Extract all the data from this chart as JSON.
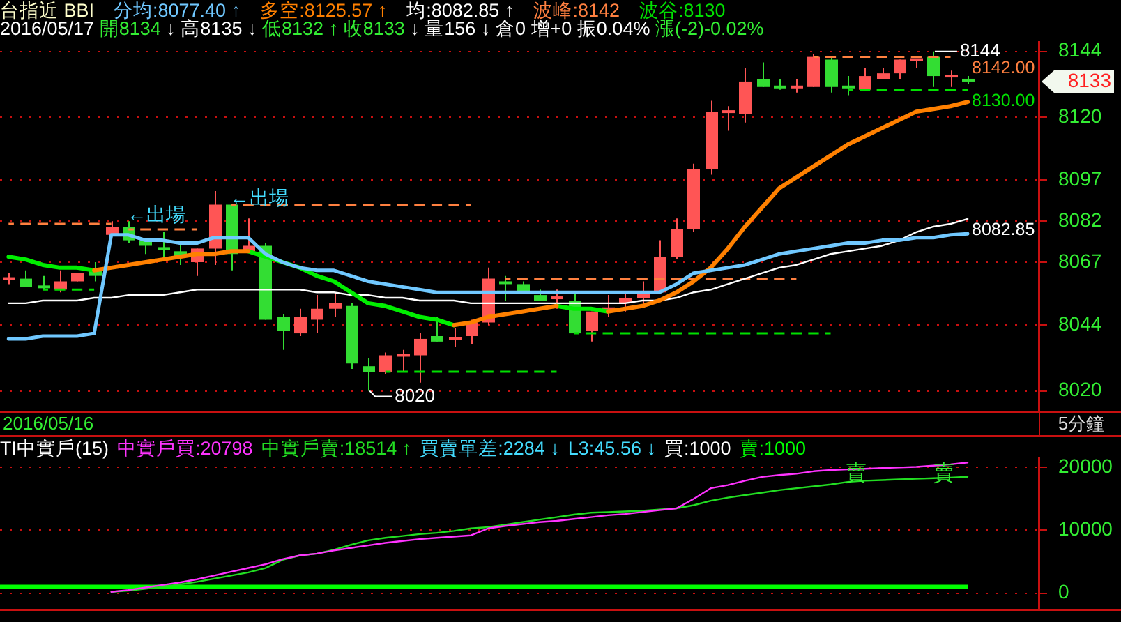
{
  "chart_data": [
    {
      "type": "candlestick",
      "title": "台指近 BBI",
      "subtitle": "2016/05/17 開8134 ↓ 高8135 ↓ 低8132 ↑ 收8133 ↓ 量156 ↓ 倉0 增+0 振0.04% 漲(-2)-0.02%",
      "categories": [
        null,
        null,
        null,
        null,
        null,
        null,
        null,
        null,
        null,
        null,
        null,
        null,
        null,
        null,
        null,
        null,
        null,
        null,
        null,
        null,
        null,
        null,
        null,
        null,
        null,
        null,
        null,
        null,
        null,
        null,
        null,
        null,
        null,
        null,
        null,
        null,
        null,
        null,
        null,
        null,
        null,
        null,
        null,
        null,
        null,
        null,
        null,
        null,
        null,
        null,
        null,
        null,
        null,
        null,
        null,
        null,
        null
      ],
      "ohlc": [
        [
          8061,
          8063,
          8059,
          8061
        ],
        [
          8061,
          8064,
          8058,
          8058
        ],
        [
          8058,
          8062,
          8057,
          8058
        ],
        [
          8057,
          8064,
          8056,
          8060
        ],
        [
          8060,
          8063,
          8060,
          8063
        ],
        [
          8064,
          8067,
          8060,
          8062
        ],
        [
          8077,
          8082,
          8077,
          8080
        ],
        [
          8080,
          8082,
          8074,
          8075
        ],
        [
          8075,
          8075,
          8070,
          8073
        ],
        [
          8072,
          8078,
          8068,
          8072
        ],
        [
          8071,
          8074,
          8066,
          8069
        ],
        [
          8067,
          8072,
          8062,
          8072
        ],
        [
          8072,
          8093,
          8066,
          8088
        ],
        [
          8088,
          8088,
          8064,
          8070
        ],
        [
          8071,
          8083,
          8071,
          8073
        ],
        [
          8073,
          8074,
          8046,
          8046
        ],
        [
          8047,
          8048,
          8035,
          8042
        ],
        [
          8041,
          8050,
          8040,
          8047
        ],
        [
          8046,
          8055,
          8041,
          8050
        ],
        [
          8050,
          8056,
          8047,
          8052
        ],
        [
          8051,
          8052,
          8028,
          8030
        ],
        [
          8029,
          8032,
          8020,
          8027
        ],
        [
          8027,
          8034,
          8026,
          8033
        ],
        [
          8033,
          8035,
          8027,
          8033
        ],
        [
          8033,
          8041,
          8023,
          8039
        ],
        [
          8040,
          8047,
          8038,
          8038
        ],
        [
          8039,
          8043,
          8036,
          8039
        ],
        [
          8040,
          8046,
          8037,
          8045
        ],
        [
          8045,
          8065,
          8044,
          8061
        ],
        [
          8060,
          8062,
          8053,
          8059
        ],
        [
          8059,
          8060,
          8056,
          8056
        ],
        [
          8055,
          8057,
          8053,
          8053
        ],
        [
          8054,
          8057,
          8050,
          8054
        ],
        [
          8053,
          8056,
          8041,
          8041
        ],
        [
          8042,
          8049,
          8038,
          8049
        ],
        [
          8050,
          8055,
          8047,
          8050
        ],
        [
          8052,
          8056,
          8049,
          8054
        ],
        [
          8054,
          8060,
          8052,
          8056
        ],
        [
          8056,
          8075,
          8056,
          8069
        ],
        [
          8069,
          8083,
          8068,
          8079
        ],
        [
          8079,
          8103,
          8078,
          8101
        ],
        [
          8101,
          8126,
          8099,
          8122
        ],
        [
          8122,
          8124,
          8115,
          8122
        ],
        [
          8121,
          8138,
          8118,
          8133
        ],
        [
          8134,
          8140,
          8131,
          8131
        ],
        [
          8131,
          8134,
          8130,
          8131
        ],
        [
          8131,
          8134,
          8129,
          8131
        ],
        [
          8131,
          8143,
          8131,
          8142
        ],
        [
          8141,
          8142,
          8129,
          8131
        ],
        [
          8131,
          8135,
          8128,
          8131
        ],
        [
          8130,
          8138,
          8130,
          8135
        ],
        [
          8134,
          8138,
          8134,
          8136
        ],
        [
          8136,
          8141,
          8134,
          8141
        ],
        [
          8141,
          8141,
          8138,
          8141
        ],
        [
          8142,
          8144,
          8131,
          8135
        ],
        [
          8135,
          8137,
          8131,
          8135
        ],
        [
          8134,
          8135,
          8132,
          8133
        ]
      ],
      "colors": [
        "#ff5555",
        "#33dd33",
        "#33dd33",
        "#ff5555",
        "#ff5555",
        "#33dd33",
        "#ff5555",
        "#33dd33",
        "#33dd33",
        "#33dd33",
        "#33dd33",
        "#ff5555",
        "#ff5555",
        "#33dd33",
        "#ff5555",
        "#33dd33",
        "#33dd33",
        "#ff5555",
        "#ff5555",
        "#ff5555",
        "#33dd33",
        "#33dd33",
        "#ff5555",
        "#ff5555",
        "#ff5555",
        "#33dd33",
        "#ff5555",
        "#ff5555",
        "#ff5555",
        "#33dd33",
        "#33dd33",
        "#33dd33",
        "#ff5555",
        "#33dd33",
        "#ff5555",
        "#ff5555",
        "#ff5555",
        "#ff5555",
        "#ff5555",
        "#ff5555",
        "#ff5555",
        "#ff5555",
        "#ff5555",
        "#ff5555",
        "#33dd33",
        "#33dd33",
        "#ff5555",
        "#ff5555",
        "#33dd33",
        "#33dd33",
        "#ff5555",
        "#ff5555",
        "#ff5555",
        "#ff5555",
        "#33dd33",
        "#ff5555",
        "#33dd33"
      ],
      "series": [
        {
          "name": "分均:8077.40 ↑",
          "type": "line",
          "color": "#70c8ff",
          "values": [
            8039,
            8039,
            8040,
            8040,
            8040,
            8041,
            8077,
            8077,
            8075,
            8075,
            8074,
            8074,
            8076,
            8076,
            8076,
            8070,
            8067,
            8065,
            8064,
            8064,
            8062,
            8060,
            8059,
            8058,
            8057,
            8056,
            8056,
            8056,
            8056,
            8056,
            8056,
            8056,
            8056,
            8056,
            8056,
            8056,
            8056,
            8056,
            8056,
            8059,
            8063,
            8064,
            8065,
            8066,
            8068,
            8070,
            8071,
            8072,
            8073,
            8074,
            8074,
            8075,
            8075,
            8076,
            8076,
            8077,
            8077.4
          ]
        },
        {
          "name": "多空:8125.57 ↑",
          "type": "line",
          "color": "#ff8000",
          "values": [
            null,
            null,
            null,
            null,
            null,
            8064,
            8065,
            8066,
            8067,
            8068,
            8069,
            8070,
            8070,
            8071,
            8071,
            null,
            null,
            null,
            null,
            null,
            null,
            null,
            null,
            null,
            null,
            null,
            8044,
            8045,
            8047,
            8048,
            8049,
            8050,
            8051,
            null,
            null,
            8049,
            8050,
            8051,
            8053,
            8056,
            8060,
            8065,
            8072,
            8080,
            8087,
            8094,
            8098,
            8102,
            8106,
            8110,
            8113,
            8116,
            8119,
            8122,
            8123,
            8124,
            8125.57
          ]
        },
        {
          "type": "line",
          "color": "#00ee00",
          "values": [
            8069,
            8068,
            8066,
            8065,
            8065,
            8064,
            null,
            null,
            null,
            null,
            null,
            null,
            null,
            null,
            8071,
            8069,
            8067,
            8065,
            8062,
            8060,
            8056,
            8052,
            8051,
            8049,
            8047,
            8046,
            8044,
            null,
            null,
            null,
            null,
            null,
            8051,
            8050,
            8050,
            8049,
            null,
            null,
            null,
            null,
            null,
            null,
            null,
            null,
            null,
            null,
            null,
            null,
            null,
            null,
            null,
            null,
            null,
            null,
            null,
            null,
            null
          ]
        },
        {
          "name": "均:8082.85 ↑",
          "type": "line",
          "color": "#ffffff",
          "values": [
            8052,
            8052,
            8053,
            8053,
            8053,
            8054,
            8054,
            8055,
            8055,
            8055,
            8056,
            8057,
            8057,
            8057,
            8057,
            8057,
            8057,
            8057,
            8056,
            8056,
            8055,
            8055,
            8054,
            8054,
            8053,
            8053,
            8053,
            8052,
            8052,
            8052,
            8052,
            8052,
            8052,
            8052,
            8052,
            8052,
            8052,
            8053,
            8053,
            8054,
            8056,
            8057,
            8059,
            8061,
            8063,
            8065,
            8066,
            8068,
            8070,
            8071,
            8072,
            8073,
            8075,
            8078,
            8080,
            8081,
            8082.85
          ],
          "value_labels": [
            null,
            null,
            null,
            null,
            null,
            null,
            null,
            null,
            null,
            null,
            null,
            null,
            null,
            null,
            null,
            null,
            null,
            null,
            null,
            null,
            null,
            null,
            null,
            null,
            null,
            null,
            null,
            null,
            null,
            null,
            null,
            null,
            null,
            null,
            null,
            null,
            null,
            null,
            null,
            null,
            null,
            null,
            null,
            null,
            null,
            null,
            null,
            null,
            null,
            null,
            null,
            null,
            null,
            null,
            null,
            null,
            "8082.85"
          ]
        },
        {
          "name": "波峰:8142",
          "type": "line",
          "color": "#ff8040",
          "line_style": "dashed",
          "values": [
            null,
            null,
            null,
            null,
            null,
            null,
            null,
            null,
            null,
            null,
            null,
            null,
            null,
            null,
            null,
            null,
            null,
            null,
            null,
            null,
            null,
            null,
            null,
            null,
            null,
            null,
            null,
            null,
            null,
            null,
            null,
            null,
            null,
            null,
            null,
            null,
            null,
            null,
            null,
            null,
            null,
            null,
            null,
            null,
            null,
            null,
            null,
            8142,
            8142,
            8142,
            8142,
            8142,
            8142,
            8142,
            8142,
            8142,
            null
          ],
          "value_labels": [
            null,
            null,
            null,
            null,
            null,
            null,
            null,
            null,
            null,
            null,
            null,
            null,
            null,
            null,
            null,
            null,
            null,
            null,
            null,
            null,
            null,
            null,
            null,
            null,
            null,
            null,
            null,
            null,
            null,
            null,
            null,
            null,
            null,
            null,
            null,
            null,
            null,
            null,
            null,
            null,
            null,
            null,
            null,
            null,
            null,
            null,
            null,
            null,
            null,
            null,
            null,
            null,
            null,
            null,
            null,
            "8142.00",
            null
          ]
        },
        {
          "name": "波谷:8130",
          "type": "line",
          "color": "#00e000",
          "line_style": "dashed",
          "values": [
            null,
            null,
            null,
            null,
            null,
            null,
            null,
            null,
            null,
            null,
            null,
            null,
            null,
            null,
            null,
            null,
            null,
            null,
            null,
            null,
            null,
            null,
            null,
            null,
            null,
            null,
            null,
            null,
            null,
            null,
            null,
            null,
            null,
            null,
            null,
            null,
            null,
            null,
            null,
            null,
            null,
            null,
            null,
            null,
            null,
            null,
            null,
            null,
            null,
            8130,
            8130,
            8130,
            8130,
            8130,
            8130,
            8130,
            8130
          ],
          "value_labels": [
            null,
            null,
            null,
            null,
            null,
            null,
            null,
            null,
            null,
            null,
            null,
            null,
            null,
            null,
            null,
            null,
            null,
            null,
            null,
            null,
            null,
            null,
            null,
            null,
            null,
            null,
            null,
            null,
            null,
            null,
            null,
            null,
            null,
            null,
            null,
            null,
            null,
            null,
            null,
            null,
            null,
            null,
            null,
            null,
            null,
            null,
            null,
            null,
            null,
            null,
            null,
            null,
            null,
            null,
            null,
            null,
            "8130.00"
          ]
        },
        {
          "type": "line",
          "color": "#ff8040",
          "line_style": "dashed",
          "values": [
            8081,
            8081,
            8081,
            8081,
            8081,
            8081,
            8081,
            null,
            null,
            null,
            null,
            null,
            null,
            null,
            null,
            null,
            null,
            null,
            null,
            null,
            null,
            null,
            null,
            null,
            null,
            null,
            null,
            null,
            null,
            null,
            null,
            null,
            null,
            null,
            null,
            null,
            null,
            null,
            null,
            null,
            null,
            null,
            null,
            null,
            null,
            null,
            null,
            null,
            null,
            null,
            null,
            null,
            null,
            null,
            null,
            null,
            null
          ]
        },
        {
          "type": "line",
          "color": "#ff8040",
          "line_style": "dashed",
          "values": [
            null,
            null,
            null,
            null,
            null,
            null,
            null,
            8079,
            8079,
            8079,
            8079,
            8079,
            null,
            null,
            null,
            null,
            null,
            null,
            null,
            null,
            null,
            null,
            null,
            null,
            null,
            null,
            null,
            null,
            null,
            null,
            null,
            null,
            null,
            null,
            null,
            null,
            null,
            null,
            null,
            null,
            null,
            null,
            null,
            null,
            null,
            null,
            null,
            null,
            null,
            null,
            null,
            null,
            null,
            null,
            null,
            null,
            null
          ]
        },
        {
          "type": "line",
          "color": "#ff8040",
          "line_style": "dashed",
          "values": [
            null,
            null,
            null,
            null,
            null,
            null,
            null,
            null,
            null,
            null,
            null,
            null,
            null,
            8088,
            8088,
            8088,
            8088,
            8088,
            8088,
            8088,
            8088,
            8088,
            8088,
            8088,
            8088,
            8088,
            8088,
            8088,
            null,
            null,
            null,
            null,
            null,
            null,
            null,
            null,
            null,
            null,
            null,
            null,
            null,
            null,
            null,
            null,
            null,
            null,
            null,
            null,
            null,
            null,
            null,
            null,
            null,
            null,
            null,
            null,
            null
          ]
        },
        {
          "type": "line",
          "color": "#00e000",
          "line_style": "dashed",
          "values": [
            null,
            null,
            8057,
            8057,
            8057,
            8057,
            null,
            null,
            null,
            null,
            null,
            null,
            null,
            null,
            null,
            null,
            null,
            null,
            null,
            null,
            null,
            null,
            null,
            null,
            null,
            null,
            null,
            null,
            null,
            null,
            null,
            null,
            null,
            null,
            null,
            null,
            null,
            null,
            null,
            null,
            null,
            null,
            null,
            null,
            null,
            null,
            null,
            null,
            null,
            null,
            null,
            null,
            null,
            null,
            null,
            null,
            null
          ]
        },
        {
          "type": "line",
          "color": "#00e000",
          "line_style": "dashed",
          "values": [
            null,
            null,
            null,
            null,
            null,
            null,
            null,
            null,
            null,
            null,
            null,
            null,
            null,
            null,
            null,
            null,
            null,
            null,
            null,
            null,
            null,
            null,
            8027,
            8027,
            8027,
            8027,
            8027,
            8027,
            8027,
            8027,
            8027,
            8027,
            8027,
            null,
            null,
            null,
            null,
            null,
            null,
            null,
            null,
            null,
            null,
            null,
            null,
            null,
            null,
            null,
            null,
            null,
            null,
            null,
            null,
            null,
            null,
            null,
            null
          ]
        },
        {
          "type": "line",
          "color": "#ff8040",
          "line_style": "dashed",
          "values": [
            null,
            null,
            null,
            null,
            null,
            null,
            null,
            null,
            null,
            null,
            null,
            null,
            null,
            null,
            null,
            null,
            null,
            null,
            null,
            null,
            null,
            null,
            null,
            null,
            null,
            null,
            null,
            null,
            null,
            8061,
            8061,
            8061,
            8061,
            8061,
            8061,
            8061,
            8061,
            8061,
            8061,
            8061,
            8061,
            8061,
            8061,
            8061,
            8061,
            8061,
            8061,
            null,
            null,
            null,
            null,
            null,
            null,
            null,
            null,
            null,
            null
          ]
        },
        {
          "type": "line",
          "color": "#00e000",
          "line_style": "dashed",
          "values": [
            null,
            null,
            null,
            null,
            null,
            null,
            null,
            null,
            null,
            null,
            null,
            null,
            null,
            null,
            null,
            null,
            null,
            null,
            null,
            null,
            null,
            null,
            null,
            null,
            null,
            null,
            null,
            null,
            null,
            null,
            null,
            null,
            null,
            8041,
            8041,
            8041,
            8041,
            8041,
            8041,
            8041,
            8041,
            8041,
            8041,
            8041,
            8041,
            8041,
            8041,
            8041,
            8041,
            null,
            null,
            null,
            null,
            null,
            null,
            null,
            null
          ]
        }
      ],
      "ylim": [
        8013,
        8147.5
      ],
      "yticks": [
        8144,
        8120,
        8097,
        8082,
        8067,
        8044,
        8020
      ],
      "grid": "y",
      "legend": "top left",
      "tick_labels": "y",
      "annotations": [
        "2016/05/16",
        "5分鐘",
        "←出場",
        "←出場",
        "8144",
        "8020",
        "8133"
      ]
    },
    {
      "type": "line",
      "title": "TI中實戶(15)",
      "categories": [
        null,
        null,
        null,
        null,
        null,
        null,
        null,
        null,
        null,
        null,
        null,
        null,
        null,
        null,
        null,
        null,
        null,
        null,
        null,
        null,
        null,
        null,
        null,
        null,
        null,
        null,
        null,
        null,
        null,
        null,
        null,
        null,
        null,
        null,
        null,
        null,
        null,
        null,
        null,
        null,
        null,
        null,
        null,
        null,
        null,
        null,
        null,
        null,
        null,
        null,
        null,
        null,
        null,
        null,
        null,
        null,
        null
      ],
      "series": [
        {
          "name": "中實戶買:20798",
          "color": "#ff33ff",
          "values": [
            null,
            null,
            null,
            null,
            null,
            null,
            200,
            500,
            900,
            1300,
            1700,
            2200,
            2800,
            3400,
            4000,
            4600,
            5400,
            6000,
            6300,
            6800,
            7200,
            7600,
            8000,
            8300,
            8600,
            8800,
            9000,
            9200,
            10300,
            10700,
            11000,
            11300,
            11500,
            11800,
            12100,
            12400,
            12600,
            12900,
            13200,
            13500,
            15000,
            16700,
            17200,
            17900,
            18500,
            18800,
            19000,
            19400,
            19600,
            19700,
            19800,
            19900,
            20000,
            20100,
            20300,
            20500,
            20798
          ]
        },
        {
          "name": "中實戶賣:18514 ↑",
          "color": "#22dd22",
          "values": [
            null,
            null,
            null,
            null,
            null,
            null,
            200,
            400,
            700,
            1000,
            1400,
            1800,
            2300,
            2800,
            3300,
            4000,
            5300,
            6000,
            6300,
            6900,
            7700,
            8400,
            8800,
            9100,
            9400,
            9600,
            9900,
            10300,
            10500,
            10900,
            11300,
            11700,
            12100,
            12500,
            12800,
            12900,
            13000,
            13100,
            13300,
            13500,
            14000,
            14700,
            15200,
            15600,
            16000,
            16400,
            16700,
            17000,
            17300,
            17700,
            17900,
            18000,
            18100,
            18200,
            18300,
            18400,
            18514
          ]
        }
      ],
      "ylim": [
        -2600,
        21600
      ],
      "yticks": [
        0,
        10000,
        20000
      ],
      "grid": "y",
      "legend": "top left",
      "tick_labels": "y",
      "ref_lines": [
        {
          "axis": "y",
          "value": 1000,
          "label": "賣:1000",
          "color": "#00ff00"
        }
      ],
      "annotations": [
        "買賣單差:2284 ↓",
        "L3:45.56 ↓",
        "買:1000",
        {
          "text": "賣",
          "y": 19000
        },
        {
          "text": "賣",
          "y": 19000
        }
      ]
    }
  ]
}
